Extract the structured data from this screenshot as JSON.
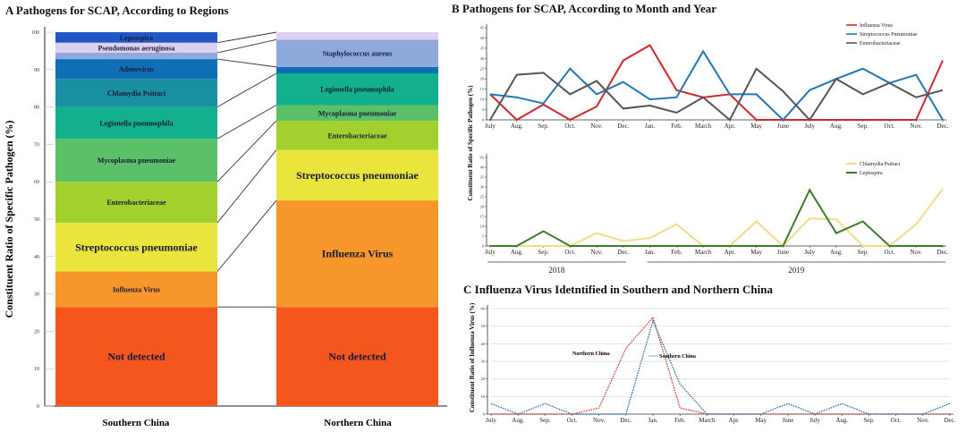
{
  "chart_data": [
    {
      "panel": "A",
      "type": "bar",
      "stacked": true,
      "title": "A  Pathogens for SCAP, According to Regions",
      "ylabel": "Constituent Ratio of Specific Pathogen (%)",
      "ylim": [
        0,
        100
      ],
      "yticks": [
        0,
        10,
        20,
        30,
        40,
        50,
        60,
        70,
        80,
        90,
        100
      ],
      "categories": [
        "Southern China",
        "Northern China"
      ],
      "colors": {
        "Not detected": "#f4561e",
        "Influenza Virus": "#f7972b",
        "Streptococcus pneumoniae": "#e9e53c",
        "Enterobacteriaceae": "#a2d12f",
        "Mycoplasma pneumoniae": "#5cc068",
        "Legionella pneumophila": "#12b08c",
        "Chlamydia Psittaci": "#1b8fa2",
        "Adenovirus": "#0f6fb6",
        "Staphylococcus aureus": "#8eaadc",
        "Pseudomonas aeruginosa": "#ddd1f1",
        "Leptospira": "#2157c4"
      },
      "series": [
        {
          "region": "Southern China",
          "segments": [
            {
              "name": "Not detected",
              "value": 26.5,
              "labeled": true
            },
            {
              "name": "Influenza Virus",
              "value": 9.5,
              "labeled": true
            },
            {
              "name": "Streptococcus pneumoniae",
              "value": 13,
              "labeled": true
            },
            {
              "name": "Enterobacteriaceae",
              "value": 11,
              "labeled": true
            },
            {
              "name": "Mycoplasma pneumoniae",
              "value": 11.5,
              "labeled": true
            },
            {
              "name": "Legionella pneumophila",
              "value": 8.5,
              "labeled": true
            },
            {
              "name": "Chlamydia Psittaci",
              "value": 7.5,
              "labeled": true
            },
            {
              "name": "Adenovirus",
              "value": 5.3,
              "labeled": true
            },
            {
              "name": "Staphylococcus aureus",
              "value": 1.7,
              "labeled": false
            },
            {
              "name": "Pseudomonas aeruginosa",
              "value": 2.7,
              "labeled": true
            },
            {
              "name": "Leptospira",
              "value": 2.8,
              "labeled": true
            }
          ]
        },
        {
          "region": "Northern China",
          "segments": [
            {
              "name": "Not detected",
              "value": 26.5,
              "labeled": true
            },
            {
              "name": "Influenza Virus",
              "value": 28.5,
              "labeled": true
            },
            {
              "name": "Streptococcus pneumoniae",
              "value": 13.5,
              "labeled": true
            },
            {
              "name": "Enterobacteriaceae",
              "value": 7.8,
              "labeled": true
            },
            {
              "name": "Mycoplasma pneumoniae",
              "value": 4.2,
              "labeled": true
            },
            {
              "name": "Legionella pneumophila",
              "value": 8.5,
              "labeled": true
            },
            {
              "name": "Adenovirus",
              "value": 1.7,
              "labeled": false
            },
            {
              "name": "Staphylococcus aureus",
              "value": 7.3,
              "labeled": true
            },
            {
              "name": "Pseudomonas aeruginosa",
              "value": 2,
              "labeled": false
            }
          ]
        }
      ]
    },
    {
      "panel": "B",
      "type": "line",
      "title": "B  Pathogens for SCAP, According to Month and Year",
      "ylabel": "Constituent Ratio of Specific Pathogen (%)",
      "x": [
        "July",
        "Aug.",
        "Sep.",
        "Oct.",
        "Nov.",
        "Dec.",
        "Jan.",
        "Feb.",
        "March",
        "Apr.",
        "May",
        "June",
        "July",
        "Aug.",
        "Sep.",
        "Oct.",
        "Nov.",
        "Dec."
      ],
      "years": [
        {
          "label": "2018",
          "from": 0,
          "to": 5
        },
        {
          "label": "2019",
          "from": 6,
          "to": 17
        }
      ],
      "subplots": [
        {
          "ylim": [
            0,
            45
          ],
          "yticks": [
            0,
            5,
            10,
            15,
            20,
            25,
            30,
            35,
            40,
            45
          ],
          "legend": "top-right",
          "series": [
            {
              "name": "Influenza Virus",
              "color": "#d0282a",
              "values": [
                12.5,
                0,
                7.5,
                0,
                6.5,
                29,
                36.5,
                14.5,
                11,
                12.5,
                0,
                0,
                0,
                0,
                0,
                0,
                0,
                29
              ]
            },
            {
              "name": "Streptococcus Pneumoniae",
              "color": "#1f78b8",
              "values": [
                12.5,
                11,
                8,
                25,
                12.5,
                18.5,
                10,
                11,
                33.5,
                12.5,
                12.5,
                0,
                14.5,
                20,
                25,
                18,
                22,
                0
              ]
            },
            {
              "name": "Enterobacteriaceae",
              "color": "#555555",
              "values": [
                0,
                22,
                23,
                12.5,
                19,
                5.5,
                7,
                3.5,
                11,
                0,
                25,
                14,
                0,
                20,
                12.5,
                18,
                11,
                14.5
              ]
            }
          ]
        },
        {
          "ylim": [
            0,
            45
          ],
          "yticks": [
            0,
            5,
            10,
            15,
            20,
            25,
            30,
            35,
            40,
            45
          ],
          "legend": "top-right",
          "series": [
            {
              "name": "Chlamydia Psittaci",
              "color": "#f2dc86",
              "values": [
                0,
                0,
                0,
                0,
                6.5,
                2.5,
                4,
                11,
                0,
                0,
                12.5,
                0,
                14,
                13.5,
                0,
                0,
                11,
                29
              ]
            },
            {
              "name": "Leptospira",
              "color": "#3d7d2a",
              "values": [
                0,
                0,
                7.5,
                0,
                0,
                0,
                0,
                0,
                0,
                0,
                0,
                0,
                28.5,
                6.5,
                12.5,
                0,
                0,
                0
              ]
            }
          ]
        }
      ]
    },
    {
      "panel": "C",
      "type": "line",
      "title": "C  Influenza Virus Idetntified in Southern and Northern China",
      "ylabel": "Constituent Ratio of Influenza Virus (%)",
      "ylim": [
        0,
        60
      ],
      "yticks": [
        0,
        10,
        20,
        30,
        40,
        50,
        60
      ],
      "grid": true,
      "x": [
        "July",
        "Aug.",
        "Sep.",
        "Oct.",
        "Nov.",
        "Dec.",
        "Jan.",
        "Feb.",
        "March",
        "Apr.",
        "May",
        "June",
        "July",
        "Aug.",
        "Sep.",
        "Oct.",
        "Nov.",
        "Dec."
      ],
      "series": [
        {
          "name": "Northern China",
          "color": "#d23a3a",
          "dashed": true,
          "values": [
            0,
            0,
            0,
            0,
            3.5,
            37.5,
            55,
            3.5,
            0,
            0,
            0,
            0,
            0,
            0,
            0,
            0,
            0,
            0
          ]
        },
        {
          "name": "Southern China",
          "color": "#2a6fa8",
          "dashed": true,
          "values": [
            6,
            0,
            6,
            0,
            0,
            0,
            53,
            17,
            0,
            0,
            0,
            6,
            0,
            6,
            0,
            0,
            0,
            6
          ]
        }
      ]
    }
  ]
}
